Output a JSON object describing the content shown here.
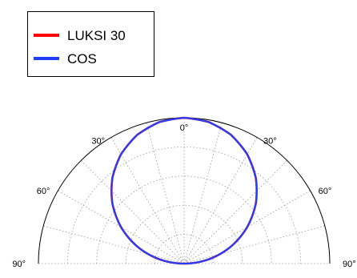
{
  "chart_data": {
    "type": "line",
    "subtype": "polar-half",
    "title": "",
    "xlabel": "",
    "ylabel": "",
    "angle_range_deg": [
      -90,
      90
    ],
    "radial_range": [
      0,
      1
    ],
    "grid": true,
    "legend": "top-left",
    "angle_tick_labels": [
      {
        "angle": -90,
        "label": "90°"
      },
      {
        "angle": -60,
        "label": "60°"
      },
      {
        "angle": -30,
        "label": "30°"
      },
      {
        "angle": 0,
        "label": "0°"
      },
      {
        "angle": 30,
        "label": "30°"
      },
      {
        "angle": 60,
        "label": "60°"
      },
      {
        "angle": 90,
        "label": "90°"
      }
    ],
    "series": [
      {
        "name": "LUKSI 30",
        "color": "#ff0000",
        "angle": [
          -90,
          -80,
          -70,
          -60,
          -50,
          -40,
          -30,
          -20,
          -10,
          0,
          10,
          20,
          30,
          40,
          50,
          60,
          70,
          80,
          90
        ],
        "r": [
          0.0,
          0.174,
          0.342,
          0.5,
          0.643,
          0.766,
          0.866,
          0.94,
          0.985,
          1.0,
          0.985,
          0.94,
          0.866,
          0.766,
          0.643,
          0.5,
          0.342,
          0.174,
          0.0
        ]
      },
      {
        "name": "COS",
        "color": "#1f3fff",
        "angle": [
          -90,
          -80,
          -70,
          -60,
          -50,
          -40,
          -30,
          -20,
          -10,
          0,
          10,
          20,
          30,
          40,
          50,
          60,
          70,
          80,
          90
        ],
        "r": [
          0.0,
          0.174,
          0.342,
          0.5,
          0.643,
          0.766,
          0.866,
          0.94,
          0.985,
          1.0,
          0.985,
          0.94,
          0.866,
          0.766,
          0.643,
          0.5,
          0.342,
          0.174,
          0.0
        ]
      }
    ]
  }
}
